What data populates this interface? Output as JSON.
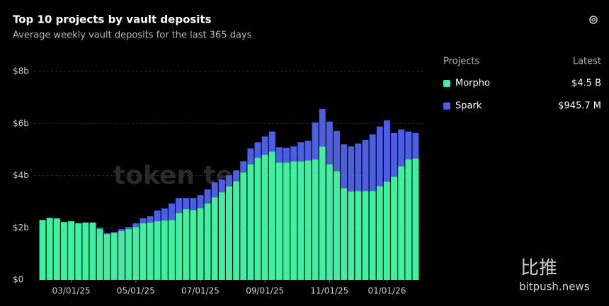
{
  "chart_data": {
    "type": "bar",
    "stacked": true,
    "title": "Top 10 projects by vault deposits",
    "subtitle": "Average weekly vault deposits for the last 365 days",
    "categories": [
      null,
      null,
      null,
      null,
      "03/01/25",
      null,
      null,
      null,
      null,
      null,
      null,
      null,
      null,
      "05/01/25",
      null,
      null,
      null,
      null,
      null,
      null,
      null,
      null,
      "07/01/25",
      null,
      null,
      null,
      null,
      null,
      null,
      null,
      null,
      "09/01/25",
      null,
      null,
      null,
      null,
      null,
      null,
      null,
      null,
      "11/01/25",
      null,
      null,
      null,
      null,
      null,
      null,
      null,
      "01/01/26",
      null,
      null,
      null,
      null
    ],
    "series": [
      {
        "name": "Morpho",
        "color": "#40f0a2",
        "values": [
          2.3,
          2.38,
          2.36,
          2.22,
          2.25,
          2.17,
          2.2,
          2.2,
          1.95,
          1.76,
          1.8,
          1.87,
          1.95,
          2.03,
          2.17,
          2.2,
          2.25,
          2.28,
          2.3,
          2.57,
          2.71,
          2.68,
          2.76,
          2.93,
          3.17,
          3.36,
          3.58,
          3.79,
          4.12,
          4.44,
          4.69,
          4.8,
          4.93,
          4.5,
          4.5,
          4.55,
          4.55,
          4.58,
          4.63,
          5.12,
          4.44,
          4.17,
          3.52,
          3.39,
          3.41,
          3.41,
          3.41,
          3.6,
          3.77,
          3.96,
          4.36,
          4.63,
          4.66
        ]
      },
      {
        "name": "Spark",
        "color": "#4c5fe3",
        "values": [
          0,
          0,
          0,
          0,
          0,
          0,
          0,
          0,
          0.05,
          0.03,
          0.04,
          0.08,
          0.08,
          0.14,
          0.19,
          0.24,
          0.41,
          0.46,
          0.63,
          0.57,
          0.43,
          0.46,
          0.49,
          0.54,
          0.57,
          0.49,
          0.43,
          0.41,
          0.43,
          0.6,
          0.59,
          0.7,
          0.76,
          0.59,
          0.57,
          0.57,
          0.73,
          0.76,
          1.41,
          1.44,
          1.63,
          1.55,
          1.68,
          1.73,
          1.82,
          1.96,
          2.17,
          2.28,
          2.35,
          1.68,
          1.41,
          1.06,
          0.98
        ]
      }
    ],
    "legend_title": "Projects",
    "legend_value_title": "Latest",
    "legend_values": [
      "$4.5 B",
      "$945.7 M"
    ],
    "ylim": [
      0,
      8
    ],
    "yticks": [
      {
        "value": 0,
        "label": "$0"
      },
      {
        "value": 2,
        "label": "$2b"
      },
      {
        "value": 4,
        "label": "$4b"
      },
      {
        "value": 6,
        "label": "$6b"
      },
      {
        "value": 8,
        "label": "$8b"
      }
    ],
    "grid": true,
    "watermarks": [
      "token te",
      "比推",
      "bitpush.news"
    ]
  }
}
